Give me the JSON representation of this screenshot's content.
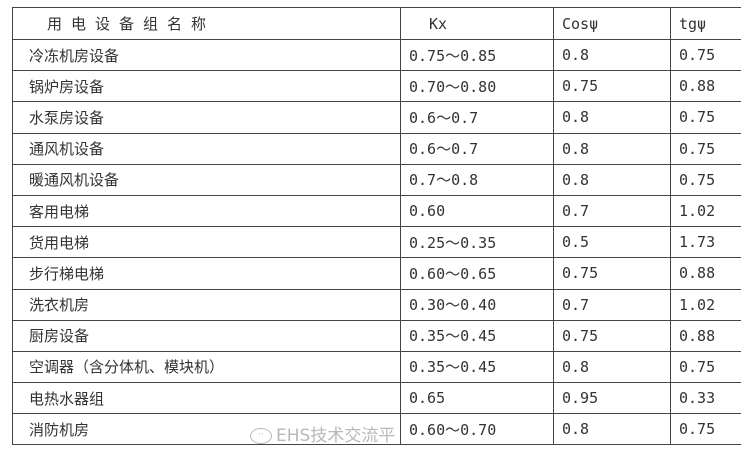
{
  "header": {
    "name": "用电设备组名称",
    "kx": "Kx",
    "cos": "Cosψ",
    "tg": "tgψ"
  },
  "rows": [
    {
      "name": "冷冻机房设备",
      "kx": "0.75～0.85",
      "cos": "0.8",
      "tg": "0.75"
    },
    {
      "name": "锅炉房设备",
      "kx": "0.70～0.80",
      "cos": "0.75",
      "tg": "0.88"
    },
    {
      "name": "水泵房设备",
      "kx": "0.6～0.7",
      "cos": "0.8",
      "tg": "0.75"
    },
    {
      "name": "通风机设备",
      "kx": "0.6～0.7",
      "cos": "0.8",
      "tg": "0.75"
    },
    {
      "name": "暖通风机设备",
      "kx": "0.7～0.8",
      "cos": "0.8",
      "tg": "0.75"
    },
    {
      "name": "客用电梯",
      "kx": "0.60",
      "cos": "0.7",
      "tg": "1.02"
    },
    {
      "name": "货用电梯",
      "kx": "0.25～0.35",
      "cos": "0.5",
      "tg": "1.73"
    },
    {
      "name": "步行梯电梯",
      "kx": "0.60～0.65",
      "cos": "0.75",
      "tg": "0.88"
    },
    {
      "name": "洗衣机房",
      "kx": "0.30～0.40",
      "cos": "0.7",
      "tg": "1.02"
    },
    {
      "name": "厨房设备",
      "kx": "0.35～0.45",
      "cos": "0.75",
      "tg": "0.88"
    },
    {
      "name": "空调器（含分体机、模块机）",
      "kx": "0.35～0.45",
      "cos": "0.8",
      "tg": "0.75"
    },
    {
      "name": "电热水器组",
      "kx": "0.65",
      "cos": "0.95",
      "tg": "0.33"
    },
    {
      "name": "消防机房",
      "kx": "0.60～0.70",
      "cos": "0.8",
      "tg": "0.75"
    }
  ],
  "watermark": {
    "text": "EHS技术交流平",
    "icon": "wechat-icon"
  }
}
